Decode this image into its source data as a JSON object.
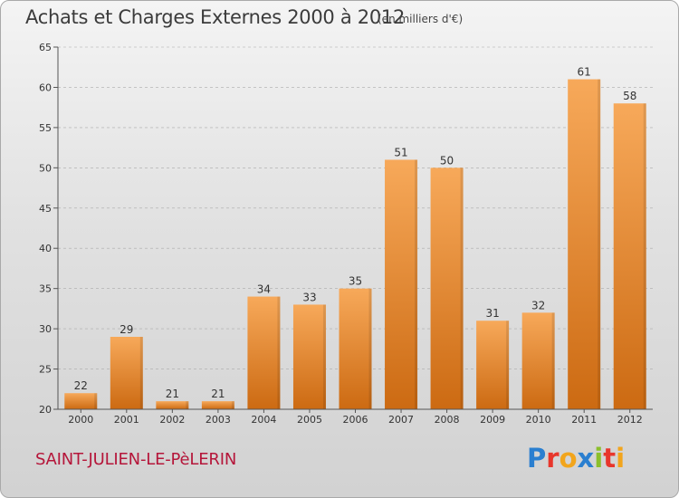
{
  "header": {
    "title": "Achats et Charges Externes 2000 à 2012",
    "unit": "(en milliers d'€)"
  },
  "footer": {
    "commune": "SAINT-JULIEN-LE-PèLERIN",
    "brand_letters": [
      "P",
      "r",
      "o",
      "x",
      "i",
      "t",
      "i"
    ],
    "brand_colors": [
      "#2a7fd0",
      "#e8362c",
      "#f2a51c",
      "#2a7fd0",
      "#8bbf2b",
      "#e8362c",
      "#f2a51c"
    ]
  },
  "colors": {
    "bar_light": "#f7a95a",
    "bar_dark": "#cc6a12",
    "axis": "#555555",
    "grid": "#aaaaaa",
    "commune_text": "#b5163a"
  },
  "chart_data": {
    "type": "bar",
    "categories": [
      "2000",
      "2001",
      "2002",
      "2003",
      "2004",
      "2005",
      "2006",
      "2007",
      "2008",
      "2009",
      "2010",
      "2011",
      "2012"
    ],
    "values": [
      22,
      29,
      21,
      21,
      34,
      33,
      35,
      51,
      50,
      31,
      32,
      61,
      58
    ],
    "value_labels": [
      "22",
      "29",
      "21",
      "21",
      "34",
      "33",
      "35",
      "51",
      "50",
      "31",
      "32",
      "61",
      "58"
    ],
    "ylim": [
      20,
      65
    ],
    "yticks": [
      20,
      25,
      30,
      35,
      40,
      45,
      50,
      55,
      60,
      65
    ],
    "grid": true,
    "title": "Achats et Charges Externes 2000 à 2012",
    "xlabel": "",
    "ylabel": ""
  }
}
